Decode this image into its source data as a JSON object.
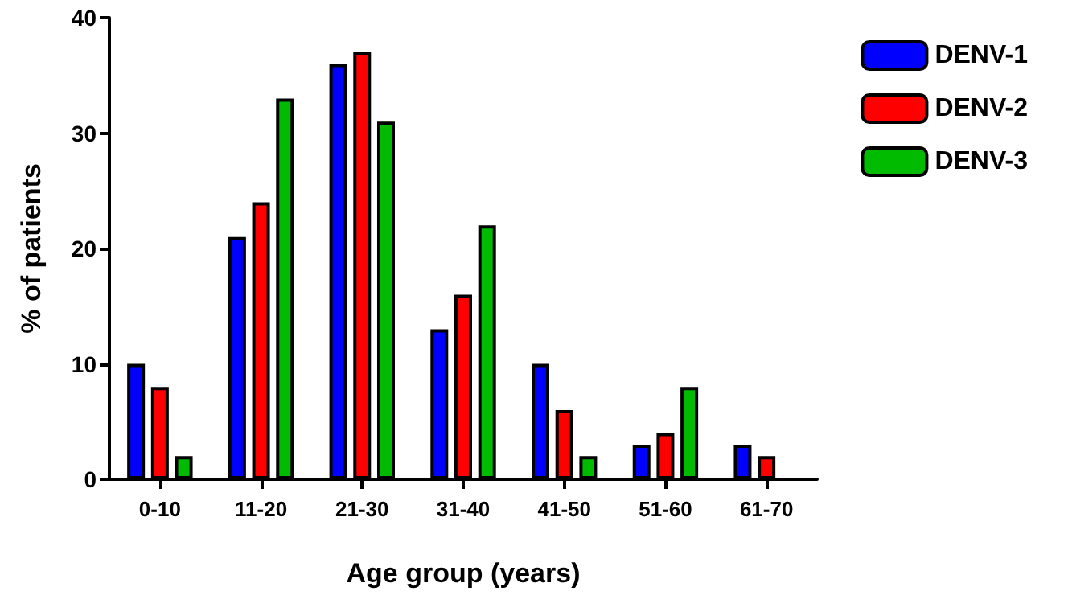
{
  "chart_data": {
    "type": "bar",
    "xlabel": "Age group (years)",
    "ylabel": "% of patients",
    "categories": [
      "0-10",
      "11-20",
      "21-30",
      "31-40",
      "41-50",
      "51-60",
      "61-70"
    ],
    "series": [
      {
        "name": "DENV-1",
        "color": "#0000ff",
        "values": [
          10,
          21,
          36,
          13,
          10,
          3,
          3
        ]
      },
      {
        "name": "DENV-2",
        "color": "#ff0000",
        "values": [
          8,
          24,
          37,
          16,
          6,
          4,
          2
        ]
      },
      {
        "name": "DENV-3",
        "color": "#00bb00",
        "values": [
          2,
          33,
          31,
          22,
          2,
          8,
          null
        ]
      }
    ],
    "ylim": [
      0,
      40
    ],
    "yticks": [
      0,
      10,
      20,
      30,
      40
    ],
    "grid": false,
    "legend": "top right"
  }
}
